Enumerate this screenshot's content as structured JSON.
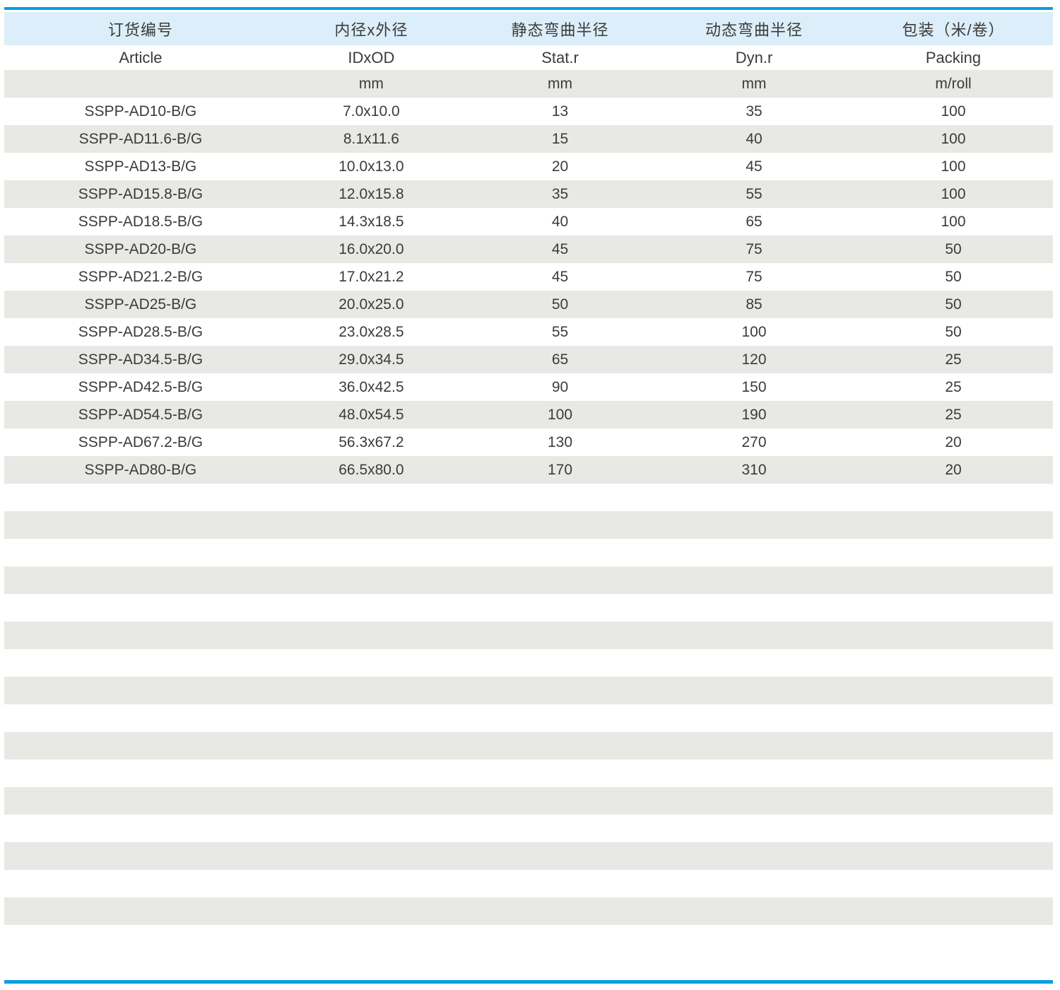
{
  "colors": {
    "accent": "#009fe3",
    "header_bg": "#dceef9",
    "stripe_bg": "#e8e8e4",
    "text": "#3b3b3b"
  },
  "table": {
    "columns": [
      {
        "id": "article",
        "zh": "订货编号",
        "en": "Article",
        "unit": ""
      },
      {
        "id": "id-od",
        "zh": "内径x外径",
        "en": "IDxOD",
        "unit": "mm"
      },
      {
        "id": "stat-r",
        "zh": "静态弯曲半径",
        "en": "Stat.r",
        "unit": "mm"
      },
      {
        "id": "dyn-r",
        "zh": "动态弯曲半径",
        "en": "Dyn.r",
        "unit": "mm"
      },
      {
        "id": "packing",
        "zh": "包装（米/卷）",
        "en": "Packing",
        "unit": "m/roll"
      }
    ],
    "col_widths": [
      "26%",
      "18%",
      "18%",
      "19%",
      "19%"
    ],
    "rows": [
      [
        "SSPP-AD10-B/G",
        "7.0x10.0",
        "13",
        "35",
        "100"
      ],
      [
        "SSPP-AD11.6-B/G",
        "8.1x11.6",
        "15",
        "40",
        "100"
      ],
      [
        "SSPP-AD13-B/G",
        "10.0x13.0",
        "20",
        "45",
        "100"
      ],
      [
        "SSPP-AD15.8-B/G",
        "12.0x15.8",
        "35",
        "55",
        "100"
      ],
      [
        "SSPP-AD18.5-B/G",
        "14.3x18.5",
        "40",
        "65",
        "100"
      ],
      [
        "SSPP-AD20-B/G",
        "16.0x20.0",
        "45",
        "75",
        "50"
      ],
      [
        "SSPP-AD21.2-B/G",
        "17.0x21.2",
        "45",
        "75",
        "50"
      ],
      [
        "SSPP-AD25-B/G",
        "20.0x25.0",
        "50",
        "85",
        "50"
      ],
      [
        "SSPP-AD28.5-B/G",
        "23.0x28.5",
        "55",
        "100",
        "50"
      ],
      [
        "SSPP-AD34.5-B/G",
        "29.0x34.5",
        "65",
        "120",
        "25"
      ],
      [
        "SSPP-AD42.5-B/G",
        "36.0x42.5",
        "90",
        "150",
        "25"
      ],
      [
        "SSPP-AD54.5-B/G",
        "48.0x54.5",
        "100",
        "190",
        "25"
      ],
      [
        "SSPP-AD67.2-B/G",
        "56.3x67.2",
        "130",
        "270",
        "20"
      ],
      [
        "SSPP-AD80-B/G",
        "66.5x80.0",
        "170",
        "310",
        "20"
      ]
    ],
    "empty_row_count": 16
  }
}
